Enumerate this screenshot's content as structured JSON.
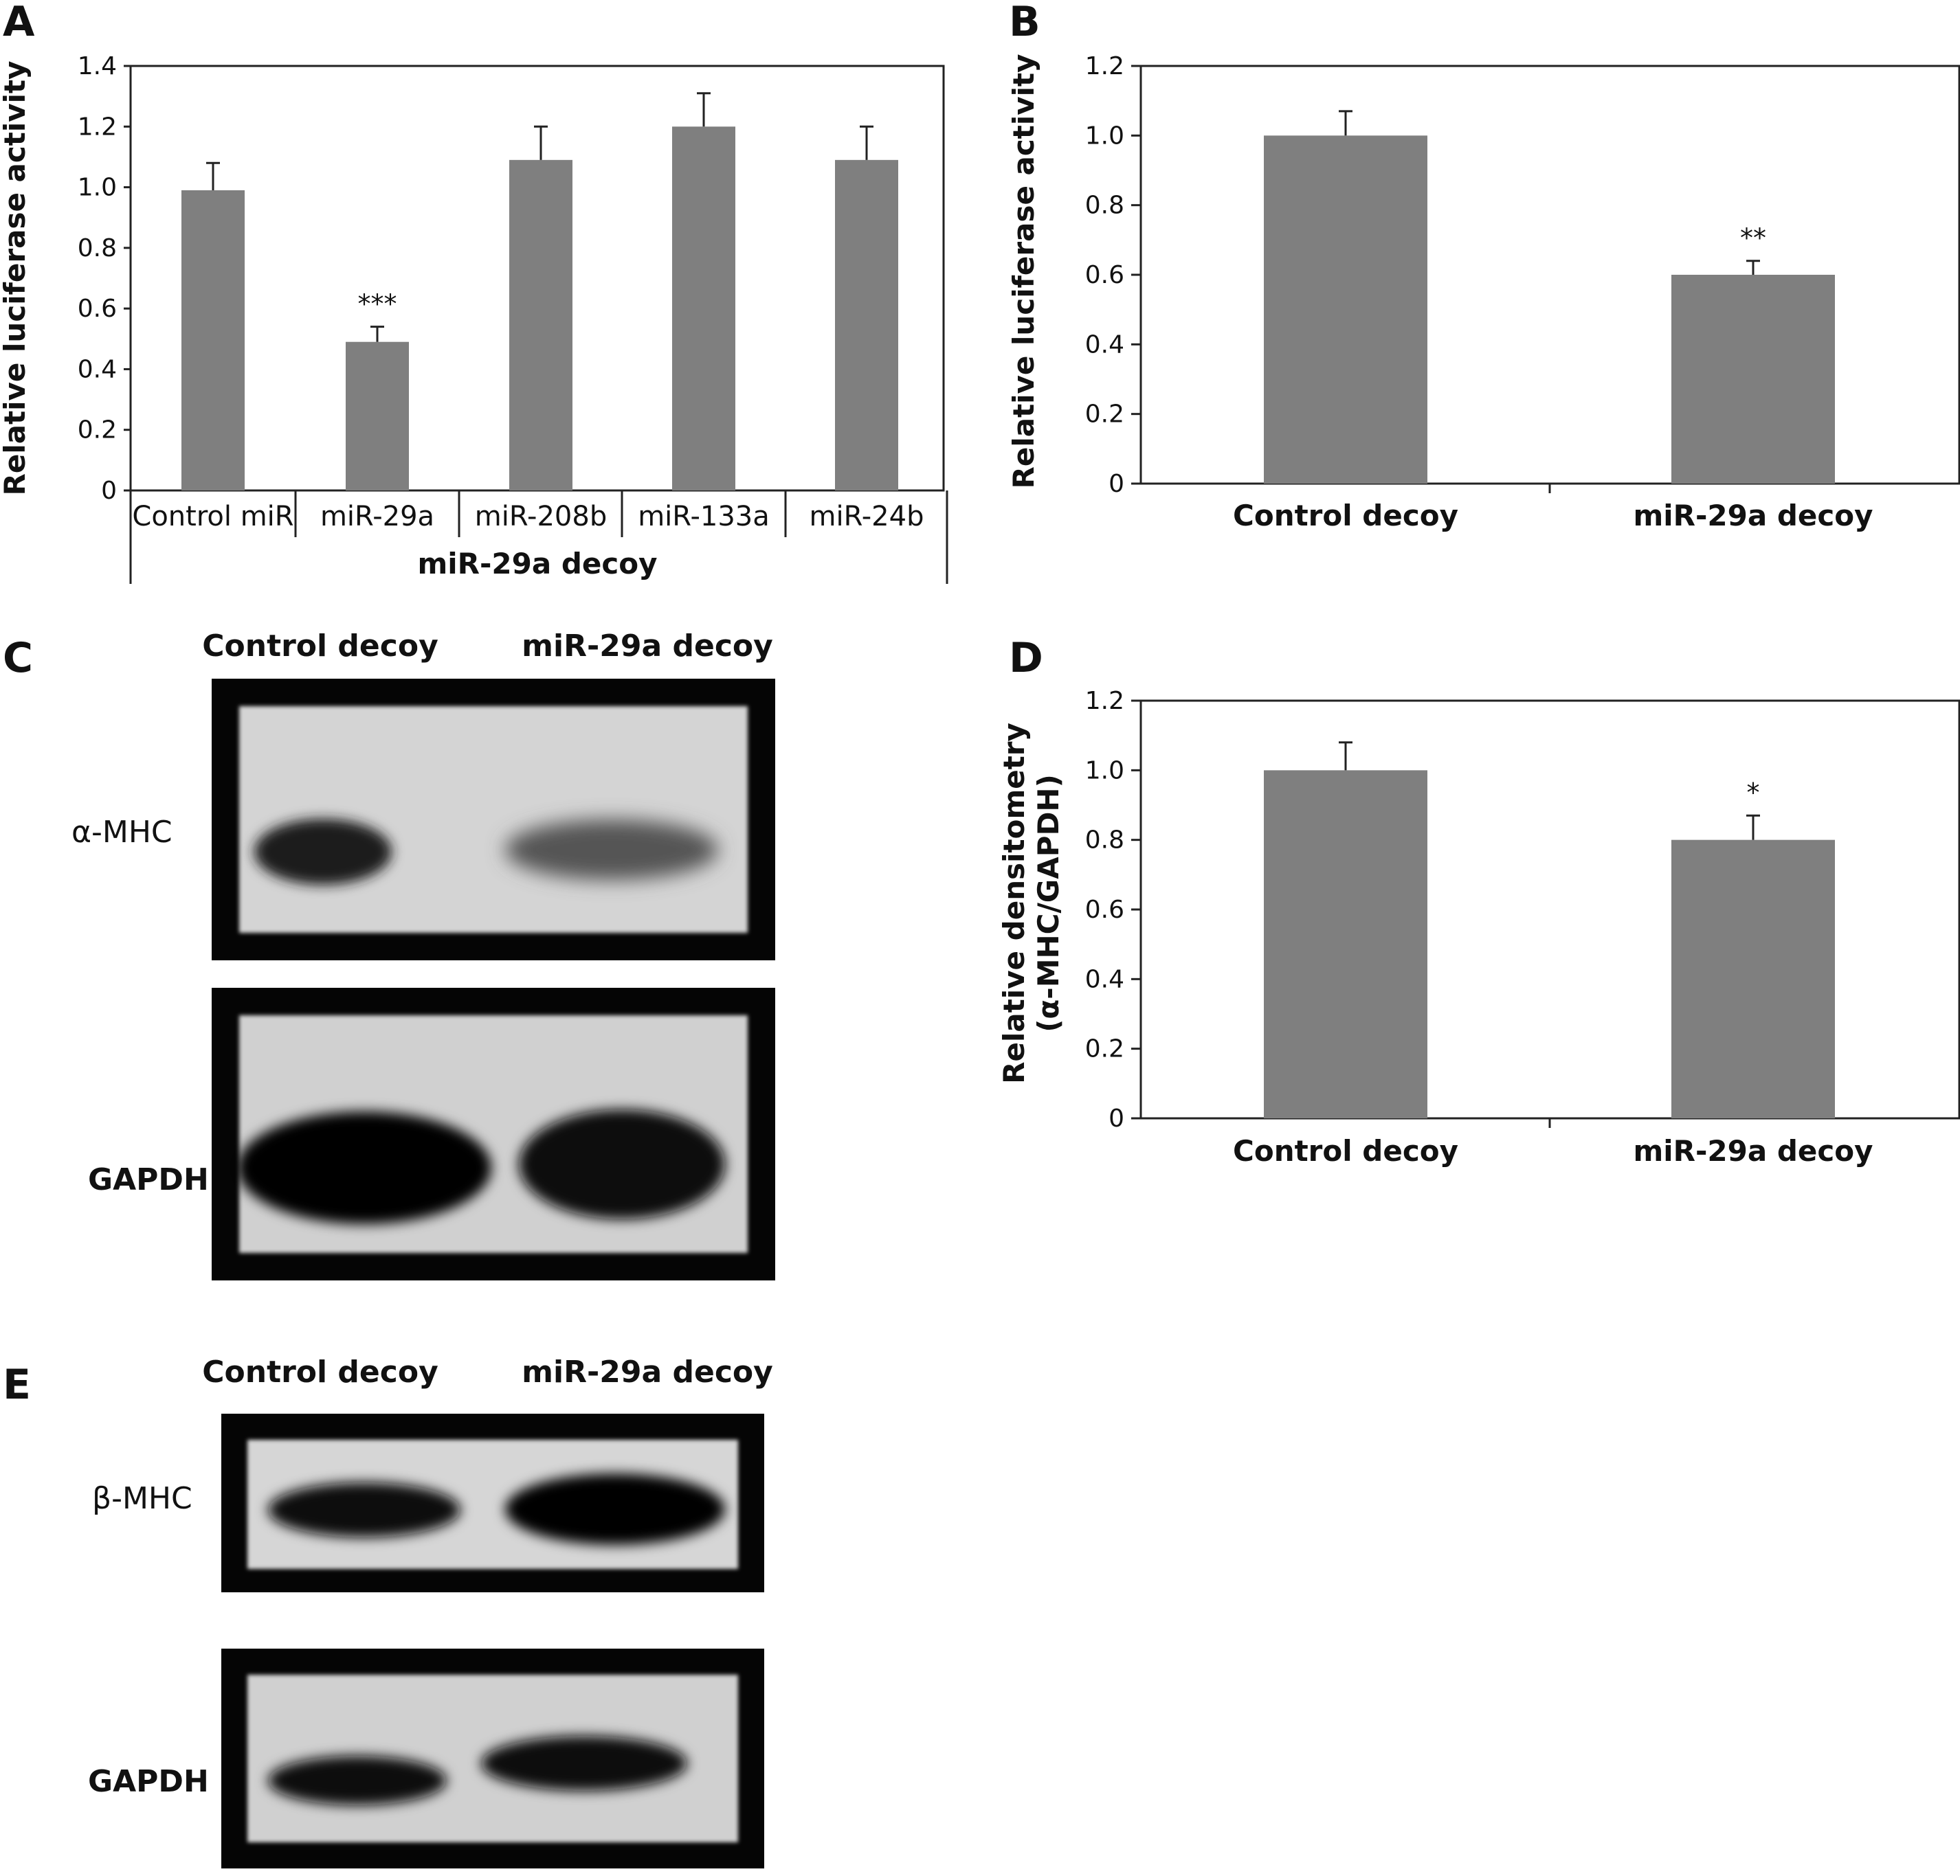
{
  "panels": {
    "A": "A",
    "B": "B",
    "C": "C",
    "D": "D",
    "E": "E"
  },
  "chart_data": [
    {
      "panel": "A",
      "type": "bar",
      "ylabel": "Relative luciferase activity",
      "xlabel": "miR-29a decoy",
      "categories": [
        "Control miR",
        "miR-29a",
        "miR-208b",
        "miR-133a",
        "miR-24b"
      ],
      "values": [
        0.99,
        0.49,
        1.09,
        1.2,
        1.09
      ],
      "errors": [
        0.09,
        0.05,
        0.11,
        0.11,
        0.11
      ],
      "annotations": [
        "",
        "***",
        "",
        "",
        ""
      ],
      "yticks": [
        "0",
        "0.2",
        "0.4",
        "0.6",
        "0.8",
        "1.0",
        "1.2",
        "1.4"
      ],
      "ylim": [
        0,
        1.4
      ],
      "bar_color": "#7f7f7f",
      "grid": false
    },
    {
      "panel": "B",
      "type": "bar",
      "ylabel": "Relative luciferase activity",
      "xlabel": "",
      "categories": [
        "Control decoy",
        "miR-29a decoy"
      ],
      "values": [
        1.0,
        0.6
      ],
      "errors": [
        0.07,
        0.04
      ],
      "annotations": [
        "",
        "**"
      ],
      "yticks": [
        "0",
        "0.2",
        "0.4",
        "0.6",
        "0.8",
        "1.0",
        "1.2"
      ],
      "ylim": [
        0,
        1.2
      ],
      "bar_color": "#7f7f7f",
      "grid": false
    },
    {
      "panel": "D",
      "type": "bar",
      "ylabel": "Relative densitometry",
      "ylabel2": "(α-MHC/GAPDH)",
      "xlabel": "",
      "categories": [
        "Control decoy",
        "miR-29a decoy"
      ],
      "values": [
        1.0,
        0.8
      ],
      "errors": [
        0.08,
        0.07
      ],
      "annotations": [
        "",
        "*"
      ],
      "yticks": [
        "0",
        "0.2",
        "0.4",
        "0.6",
        "0.8",
        "1.0",
        "1.2"
      ],
      "ylim": [
        0,
        1.2
      ],
      "bar_color": "#7f7f7f",
      "grid": false
    }
  ],
  "blot_C": {
    "lane_labels": [
      "Control decoy",
      "miR-29a decoy"
    ],
    "row_labels": [
      "α-MHC",
      "GAPDH"
    ]
  },
  "blot_E": {
    "lane_labels": [
      "Control decoy",
      "miR-29a decoy"
    ],
    "row_labels": [
      "β-MHC",
      "GAPDH"
    ]
  }
}
